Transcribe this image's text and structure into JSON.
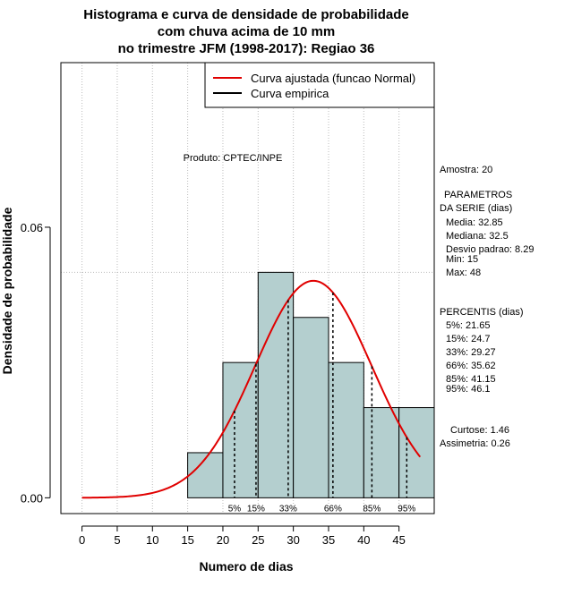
{
  "chart_data": {
    "type": "bar",
    "title_lines": [
      "Histograma e curva de densidade de probabilidade",
      "com chuva acima de 10 mm",
      "no trimestre JFM (1998-2017): Regiao 36"
    ],
    "xlabel": "Numero de dias",
    "ylabel": "Densidade de probabilidade",
    "xlim": [
      -3,
      50
    ],
    "ylim": [
      -0.0035,
      0.0965
    ],
    "xticks": [
      0,
      5,
      10,
      15,
      20,
      25,
      30,
      35,
      40,
      45
    ],
    "xtick_labels": [
      "0",
      "5",
      "10",
      "15",
      "20",
      "25",
      "30",
      "35",
      "40",
      "45"
    ],
    "yticks": [
      0.0,
      0.06
    ],
    "ytick_labels": [
      "0.00",
      "0.06"
    ],
    "histogram": {
      "bins": [
        [
          15,
          20
        ],
        [
          20,
          25
        ],
        [
          25,
          30
        ],
        [
          30,
          35
        ],
        [
          35,
          40
        ],
        [
          40,
          45
        ],
        [
          45,
          50
        ]
      ],
      "density": [
        0.01,
        0.03,
        0.05,
        0.04,
        0.03,
        0.02,
        0.02
      ],
      "color": "#b4cfcf"
    },
    "fit_curve": {
      "name": "Curva ajustada (funcao Normal)",
      "distribution": "normal",
      "mean": 32.85,
      "sd": 8.29,
      "x_range": [
        0,
        48
      ],
      "color": "#e00000"
    },
    "empirical_curve": {
      "name": "Curva empirica",
      "color": "#000000"
    },
    "percentiles": [
      {
        "label": "5%",
        "value": 21.65
      },
      {
        "label": "15%",
        "value": 24.7
      },
      {
        "label": "33%",
        "value": 29.27
      },
      {
        "label": "66%",
        "value": 35.62
      },
      {
        "label": "85%",
        "value": 41.15
      },
      {
        "label": "95%",
        "value": 46.1
      }
    ],
    "legend_position": "top-right",
    "produto": "Produto: CPTEC/INPE"
  },
  "stats_panel": {
    "amostra": "Amostra: 20",
    "parametros_title_1": "PARAMETROS",
    "parametros_title_2": "DA SERIE (dias)",
    "media": "Media: 32.85",
    "mediana": "Mediana: 32.5",
    "desvio": "Desvio padrao: 8.29",
    "min": "Min: 15",
    "max": "Max: 48",
    "percentis_title": "PERCENTIS (dias)",
    "p5": "5%: 21.65",
    "p15": "15%: 24.7",
    "p33": "33%: 29.27",
    "p66": "66%: 35.62",
    "p85": "85%: 41.15",
    "p95": "95%: 46.1",
    "curtose": "Curtose: 1.46",
    "assimetria": "Assimetria: 0.26"
  }
}
